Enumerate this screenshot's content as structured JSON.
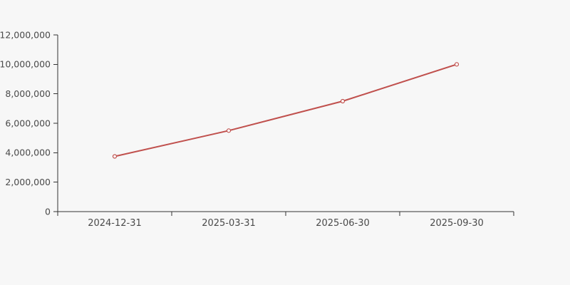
{
  "page": {
    "background_color": "#f7f7f7"
  },
  "chart_data": {
    "type": "line",
    "title": "",
    "categories": [
      "2024-12-31",
      "2025-03-31",
      "2025-06-30",
      "2025-09-30"
    ],
    "values": [
      3750000,
      5500000,
      7500000,
      10000000
    ],
    "xlabel": "",
    "ylabel": "",
    "ylim": [
      0,
      12000000
    ],
    "ytick_interval": 2000000,
    "ytick_labels": [
      "0",
      "2,000,000",
      "4,000,000",
      "6,000,000",
      "8,000,000",
      "10,000,000",
      "12,000,000"
    ],
    "grid": false,
    "legend": false,
    "marker": "open-circle",
    "line_color": "#c0504d",
    "marker_fill": "#ffffff",
    "axis_color": "#333333",
    "label_color": "#4a4a4a"
  }
}
